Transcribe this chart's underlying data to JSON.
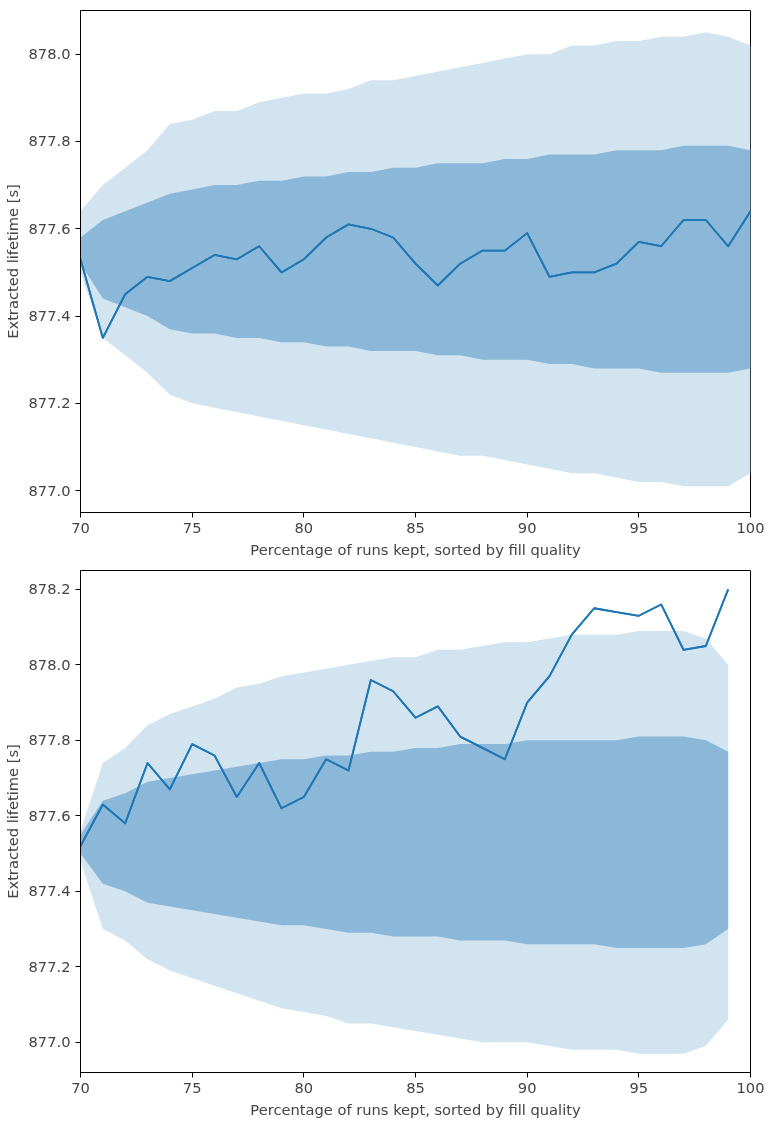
{
  "chart_data": [
    {
      "type": "line",
      "xlabel": "Percentage of runs kept, sorted by fill quality",
      "ylabel": "Extracted lifetime [s]",
      "xlim": [
        70,
        100
      ],
      "ylim": [
        876.95,
        878.1
      ],
      "xticks": [
        70,
        75,
        80,
        85,
        90,
        95,
        100
      ],
      "yticks": [
        {
          "value": 877.0,
          "label": "877.0"
        },
        {
          "value": 877.2,
          "label": "877.2"
        },
        {
          "value": 877.4,
          "label": "877.4"
        },
        {
          "value": 877.6,
          "label": "877.6"
        },
        {
          "value": 877.8,
          "label": "877.8"
        },
        {
          "value": 878.0,
          "label": "878.0"
        }
      ],
      "x": [
        70,
        71,
        72,
        73,
        74,
        75,
        76,
        77,
        78,
        79,
        80,
        81,
        82,
        83,
        84,
        85,
        86,
        87,
        88,
        89,
        90,
        91,
        92,
        93,
        94,
        95,
        96,
        97,
        98,
        99,
        100
      ],
      "series": [
        {
          "color": "#1f77b4",
          "values": [
            877.53,
            877.35,
            877.45,
            877.49,
            877.48,
            877.51,
            877.54,
            877.53,
            877.56,
            877.5,
            877.53,
            877.58,
            877.61,
            877.6,
            877.58,
            877.52,
            877.47,
            877.52,
            877.55,
            877.55,
            877.59,
            877.49,
            877.5,
            877.5,
            877.52,
            877.57,
            877.56,
            877.62,
            877.62,
            877.56,
            877.64
          ],
          "lower": [
            877.5,
            877.35,
            877.31,
            877.27,
            877.22,
            877.2,
            877.19,
            877.18,
            877.17,
            877.16,
            877.15,
            877.14,
            877.13,
            877.12,
            877.11,
            877.1,
            877.09,
            877.08,
            877.08,
            877.07,
            877.06,
            877.05,
            877.04,
            877.04,
            877.03,
            877.02,
            877.02,
            877.01,
            877.01,
            877.01,
            877.04
          ],
          "upper": [
            877.64,
            877.7,
            877.74,
            877.78,
            877.84,
            877.85,
            877.87,
            877.87,
            877.89,
            877.9,
            877.91,
            877.91,
            877.92,
            877.94,
            877.94,
            877.95,
            877.96,
            877.97,
            877.98,
            877.99,
            878.0,
            878.0,
            878.02,
            878.02,
            878.03,
            878.03,
            878.04,
            878.04,
            878.05,
            878.04,
            878.02
          ]
        },
        {
          "color": "#1f77b4",
          "values": [
            877.53,
            877.35,
            877.45,
            877.49,
            877.48,
            877.51,
            877.54,
            877.53,
            877.56,
            877.5,
            877.53,
            877.58,
            877.61,
            877.6,
            877.58,
            877.52,
            877.47,
            877.52,
            877.55,
            877.55,
            877.59,
            877.49,
            877.5,
            877.5,
            877.52,
            877.57,
            877.56,
            877.62,
            877.62,
            877.56,
            877.64
          ],
          "lower": [
            877.52,
            877.44,
            877.42,
            877.4,
            877.37,
            877.36,
            877.36,
            877.35,
            877.35,
            877.34,
            877.34,
            877.33,
            877.33,
            877.32,
            877.32,
            877.32,
            877.31,
            877.31,
            877.3,
            877.3,
            877.3,
            877.29,
            877.29,
            877.28,
            877.28,
            877.28,
            877.27,
            877.27,
            877.27,
            877.27,
            877.28
          ],
          "upper": [
            877.58,
            877.62,
            877.64,
            877.66,
            877.68,
            877.69,
            877.7,
            877.7,
            877.71,
            877.71,
            877.72,
            877.72,
            877.73,
            877.73,
            877.74,
            877.74,
            877.75,
            877.75,
            877.75,
            877.76,
            877.76,
            877.77,
            877.77,
            877.77,
            877.78,
            877.78,
            877.78,
            877.79,
            877.79,
            877.79,
            877.78
          ]
        }
      ]
    },
    {
      "type": "line",
      "xlabel": "Percentage of runs kept, sorted by fill quality",
      "ylabel": "Extracted lifetime [s]",
      "xlim": [
        70,
        100
      ],
      "ylim": [
        876.92,
        878.25
      ],
      "xticks": [
        70,
        75,
        80,
        85,
        90,
        95,
        100
      ],
      "yticks": [
        {
          "value": 877.0,
          "label": "877.0"
        },
        {
          "value": 877.2,
          "label": "877.2"
        },
        {
          "value": 877.4,
          "label": "877.4"
        },
        {
          "value": 877.6,
          "label": "877.6"
        },
        {
          "value": 877.8,
          "label": "877.8"
        },
        {
          "value": 878.0,
          "label": "878.0"
        },
        {
          "value": 878.2,
          "label": "878.2"
        }
      ],
      "x": [
        70,
        71,
        72,
        73,
        74,
        75,
        76,
        77,
        78,
        79,
        80,
        81,
        82,
        83,
        84,
        85,
        86,
        87,
        88,
        89,
        90,
        91,
        92,
        93,
        94,
        95,
        96,
        97,
        98,
        99
      ],
      "series": [
        {
          "color": "#1f77b4",
          "values": [
            877.52,
            877.63,
            877.58,
            877.74,
            877.67,
            877.79,
            877.76,
            877.65,
            877.74,
            877.62,
            877.65,
            877.75,
            877.72,
            877.96,
            877.93,
            877.86,
            877.89,
            877.81,
            877.78,
            877.75,
            877.9,
            877.97,
            878.08,
            878.15,
            878.14,
            878.13,
            878.16,
            878.04,
            878.05,
            878.2
          ],
          "lower": [
            877.48,
            877.3,
            877.27,
            877.22,
            877.19,
            877.17,
            877.15,
            877.13,
            877.11,
            877.09,
            877.08,
            877.07,
            877.05,
            877.05,
            877.04,
            877.03,
            877.02,
            877.01,
            877.0,
            877.0,
            877.0,
            876.99,
            876.98,
            876.98,
            876.98,
            876.97,
            876.97,
            876.97,
            876.99,
            877.06
          ],
          "upper": [
            877.56,
            877.74,
            877.78,
            877.84,
            877.87,
            877.89,
            877.91,
            877.94,
            877.95,
            877.97,
            877.98,
            877.99,
            878.0,
            878.01,
            878.02,
            878.02,
            878.04,
            878.04,
            878.05,
            878.06,
            878.06,
            878.07,
            878.08,
            878.08,
            878.08,
            878.09,
            878.09,
            878.09,
            878.07,
            878.0
          ]
        },
        {
          "color": "#1f77b4",
          "values": [
            877.52,
            877.63,
            877.58,
            877.74,
            877.67,
            877.79,
            877.76,
            877.65,
            877.74,
            877.62,
            877.65,
            877.75,
            877.72,
            877.96,
            877.93,
            877.86,
            877.89,
            877.81,
            877.78,
            877.75,
            877.9,
            877.97,
            878.08,
            878.15,
            878.14,
            878.13,
            878.16,
            878.04,
            878.05,
            878.2
          ],
          "lower": [
            877.5,
            877.42,
            877.4,
            877.37,
            877.36,
            877.35,
            877.34,
            877.33,
            877.32,
            877.31,
            877.31,
            877.3,
            877.29,
            877.29,
            877.28,
            877.28,
            877.28,
            877.27,
            877.27,
            877.27,
            877.26,
            877.26,
            877.26,
            877.26,
            877.25,
            877.25,
            877.25,
            877.25,
            877.26,
            877.3
          ],
          "upper": [
            877.55,
            877.64,
            877.66,
            877.69,
            877.7,
            877.71,
            877.72,
            877.73,
            877.74,
            877.75,
            877.75,
            877.76,
            877.76,
            877.77,
            877.77,
            877.78,
            877.78,
            877.79,
            877.79,
            877.79,
            877.8,
            877.8,
            877.8,
            877.8,
            877.8,
            877.81,
            877.81,
            877.81,
            877.8,
            877.77
          ]
        }
      ]
    }
  ]
}
